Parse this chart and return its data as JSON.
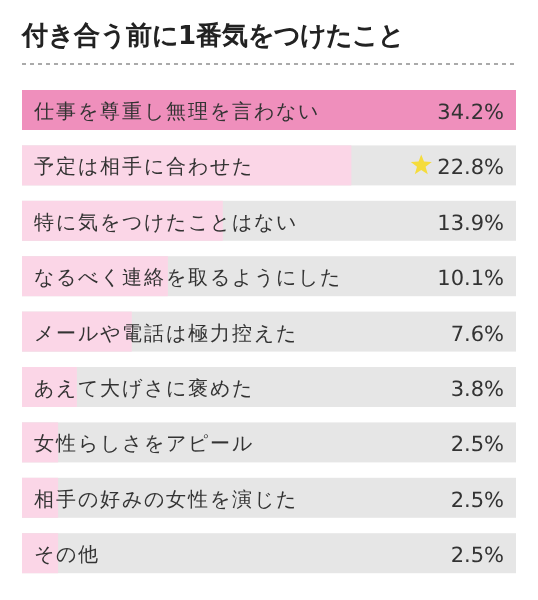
{
  "chart_data": {
    "type": "bar",
    "orientation": "horizontal",
    "value_labels": [
      "34.2%",
      "22.8%",
      "13.9%",
      "10.1%",
      "7.6%",
      "3.8%",
      "2.5%",
      "2.5%",
      "2.5%"
    ],
    "title": "付き合う前に1番気をつけたこと",
    "categories": [
      "仕事を尊重し無理を言わない",
      "予定は相手に合わせた",
      "特に気をつけたことはない",
      "なるべく連絡を取るようにした",
      "メールや電話は極力控えた",
      "あえて大げさに褒めた",
      "女性らしさをアピール",
      "相手の好みの女性を演じた",
      "その他"
    ],
    "values": [
      34.2,
      22.8,
      13.9,
      10.1,
      7.6,
      3.8,
      2.5,
      2.5,
      2.5
    ],
    "colors": [
      "#ef8fbc",
      "#fbd6e7",
      "#fbd6e7",
      "#fbd6e7",
      "#fbd6e7",
      "#fbd6e7",
      "#fbd6e7",
      "#fbd6e7",
      "#fbd6e7"
    ]
  }
}
